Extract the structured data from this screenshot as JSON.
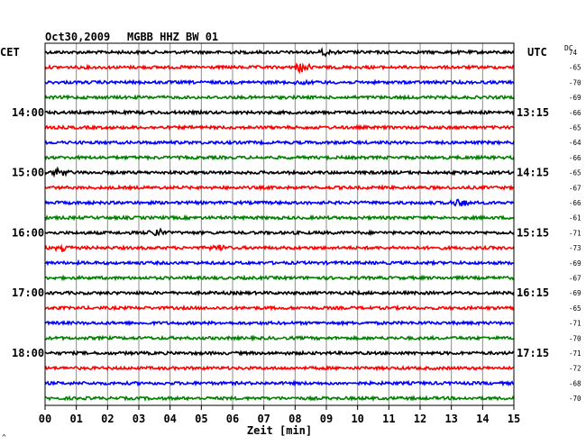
{
  "header": {
    "date": "Oct30,2009",
    "station": "MGBB HHZ BW 01",
    "left_timezone": "CET",
    "right_timezone": "UTC",
    "dc_label": "DC"
  },
  "chart_data": {
    "type": "line",
    "x_label": "Zeit [min]",
    "x_ticks": [
      "00",
      "01",
      "02",
      "03",
      "04",
      "05",
      "06",
      "07",
      "08",
      "09",
      "10",
      "11",
      "12",
      "13",
      "14",
      "15"
    ],
    "left_time_labels": [
      "14:00",
      "15:00",
      "16:00",
      "17:00",
      "18:00"
    ],
    "right_time_labels": [
      "13:15",
      "14:15",
      "15:15",
      "16:15",
      "17:15"
    ],
    "time_label_rows": [
      4,
      8,
      12,
      16,
      20
    ],
    "dc_offsets": [
      "74",
      "-65",
      "-70",
      "-69",
      "-66",
      "-65",
      "-64",
      "-66",
      "-65",
      "-67",
      "-66",
      "-61",
      "-71",
      "-73",
      "-69",
      "-67",
      "-69",
      "-65",
      "-71",
      "-70",
      "-71",
      "-72",
      "-68",
      "-70"
    ],
    "row_colors": [
      "#000000",
      "#ff0000",
      "#0000ff",
      "#008000"
    ],
    "events": [
      {
        "row": 0,
        "minute": 9.0,
        "amp": 3
      },
      {
        "row": 1,
        "minute": 8.2,
        "amp": 6
      },
      {
        "row": 2,
        "minute": 8.2,
        "amp": 3
      },
      {
        "row": 8,
        "minute": 0.5,
        "amp": 4
      },
      {
        "row": 10,
        "minute": 13.3,
        "amp": 5
      },
      {
        "row": 12,
        "minute": 3.6,
        "amp": 5
      },
      {
        "row": 13,
        "minute": 0.6,
        "amp": 4
      },
      {
        "row": 13,
        "minute": 5.5,
        "amp": 4
      }
    ]
  },
  "footer_mark": "^"
}
